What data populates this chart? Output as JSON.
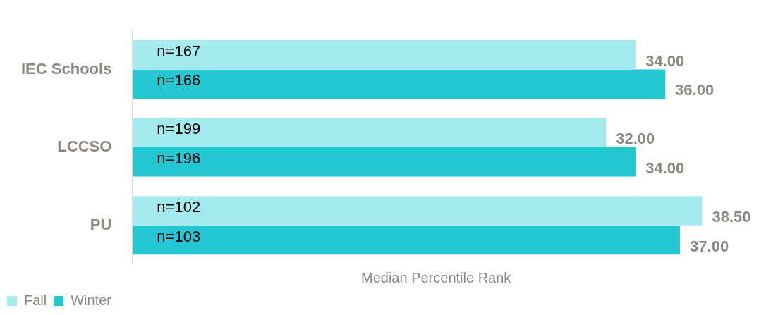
{
  "chart_data": {
    "type": "bar",
    "orientation": "horizontal",
    "xlabel": "Median Percentile Rank",
    "categories": [
      "IEC Schools",
      "LCCSO",
      "PU"
    ],
    "series": [
      {
        "name": "Fall",
        "color": "#a5eaed",
        "values": [
          34,
          32,
          38.5
        ],
        "value_labels": [
          "34.00",
          "32.00",
          "38.50"
        ]
      },
      {
        "name": "Winter",
        "color": "#25c8d2",
        "values": [
          36,
          34,
          37
        ],
        "value_labels": [
          "36.00",
          "34.00",
          "37.00"
        ]
      }
    ],
    "annotations": [
      "n=167",
      "n=166",
      "n=199",
      "n=196",
      "n=102",
      "n=103"
    ],
    "legend": "bottom left",
    "grid": false
  }
}
